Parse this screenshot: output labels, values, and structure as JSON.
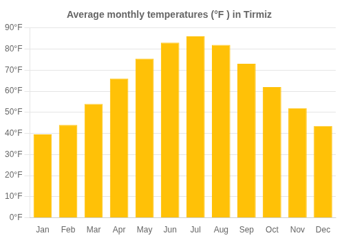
{
  "chart_data": {
    "type": "bar",
    "title": "Average monthly temperatures (°F ) in Tirmiz",
    "categories": [
      "Jan",
      "Feb",
      "Mar",
      "Apr",
      "May",
      "Jun",
      "Jul",
      "Aug",
      "Sep",
      "Oct",
      "Nov",
      "Dec"
    ],
    "values": [
      39.5,
      44,
      54,
      66,
      75.5,
      83,
      86,
      82,
      73,
      62,
      52,
      43.5
    ],
    "color": "#FFC107",
    "ylim": [
      0,
      90
    ],
    "yticks": [
      {
        "value": 0,
        "label": "0°F"
      },
      {
        "value": 10,
        "label": "10°F"
      },
      {
        "value": 20,
        "label": "20°F"
      },
      {
        "value": 30,
        "label": "30°F"
      },
      {
        "value": 40,
        "label": "40°F"
      },
      {
        "value": 50,
        "label": "50°F"
      },
      {
        "value": 60,
        "label": "60°F"
      },
      {
        "value": 70,
        "label": "70°F"
      },
      {
        "value": 80,
        "label": "80°F"
      },
      {
        "value": 90,
        "label": "90°F"
      }
    ],
    "grid": true
  }
}
